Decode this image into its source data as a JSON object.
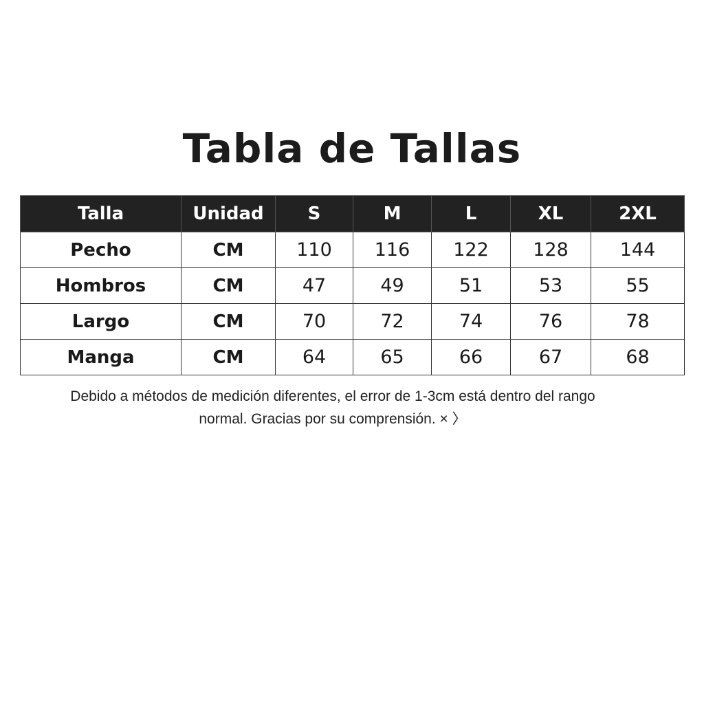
{
  "title": "Tabla de Tallas",
  "table": {
    "headers": [
      "Talla",
      "Unidad",
      "S",
      "M",
      "L",
      "XL",
      "2XL"
    ],
    "rows": [
      {
        "label": "Pecho",
        "unit": "CM",
        "values": [
          "110",
          "116",
          "122",
          "128",
          "144"
        ]
      },
      {
        "label": "Hombros",
        "unit": "CM",
        "values": [
          "47",
          "49",
          "51",
          "53",
          "55"
        ]
      },
      {
        "label": "Largo",
        "unit": "CM",
        "values": [
          "70",
          "72",
          "74",
          "76",
          "78"
        ]
      },
      {
        "label": "Manga",
        "unit": "CM",
        "values": [
          "64",
          "65",
          "66",
          "67",
          "68"
        ]
      }
    ]
  },
  "note": {
    "line1": "Debido a métodos de medición diferentes, el error de 1-3cm está dentro del rango",
    "line2": "normal. Gracias por su comprensión. × 〉"
  }
}
